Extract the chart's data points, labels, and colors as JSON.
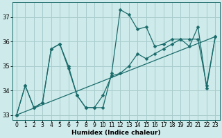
{
  "xlabel": "Humidex (Indice chaleur)",
  "background_color": "#ceeaea",
  "grid_color": "#a8cccc",
  "line_color": "#1a6b6b",
  "x": [
    0,
    1,
    2,
    3,
    4,
    5,
    6,
    7,
    8,
    9,
    10,
    11,
    12,
    13,
    14,
    15,
    16,
    17,
    18,
    19,
    20,
    21,
    22,
    23
  ],
  "series1": [
    33.0,
    34.2,
    33.3,
    33.5,
    35.7,
    35.9,
    35.0,
    33.8,
    33.3,
    33.3,
    33.3,
    34.7,
    37.3,
    37.1,
    36.5,
    36.6,
    35.8,
    35.9,
    36.1,
    36.1,
    35.8,
    36.6,
    34.1,
    36.2
  ],
  "series2_x": [
    0,
    23
  ],
  "series2_y": [
    33.0,
    36.2
  ],
  "series3": [
    33.0,
    34.2,
    33.3,
    33.5,
    35.7,
    35.9,
    34.9,
    33.8,
    33.3,
    33.3,
    33.8,
    34.6,
    34.7,
    35.0,
    35.5,
    35.3,
    35.5,
    35.7,
    35.9,
    36.1,
    36.1,
    36.1,
    34.2,
    36.2
  ],
  "ylim": [
    32.8,
    37.6
  ],
  "yticks": [
    33,
    34,
    35,
    36,
    37
  ],
  "xlim": [
    -0.5,
    23.5
  ],
  "markersize": 2.5,
  "linewidth": 0.9,
  "tick_fontsize": 5.5,
  "xlabel_fontsize": 6.5
}
